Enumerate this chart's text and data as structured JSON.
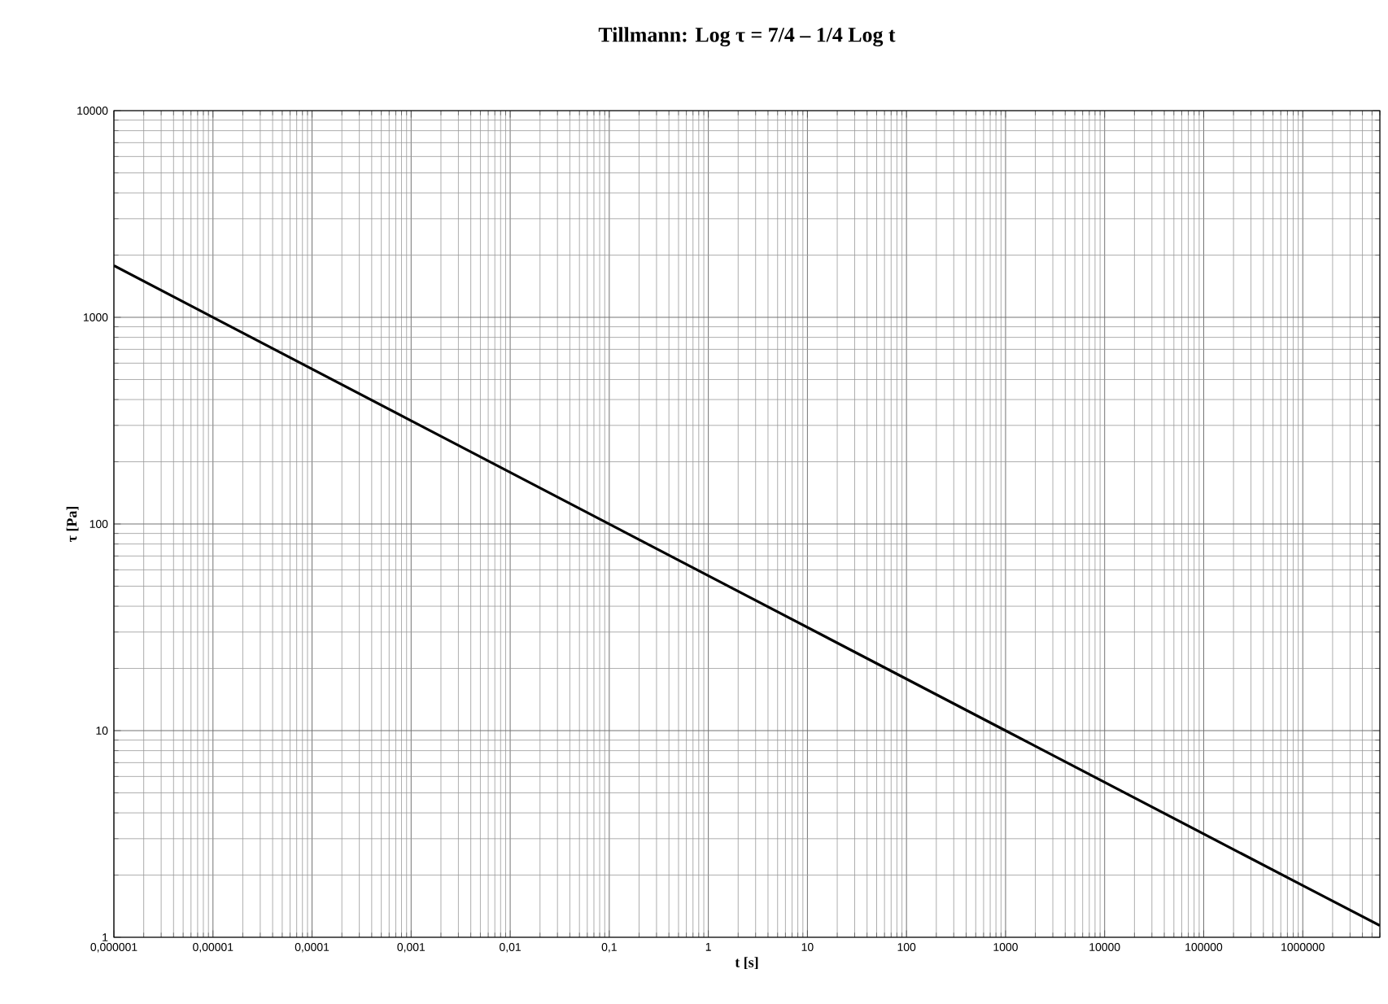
{
  "chart_data": {
    "type": "line",
    "title": "Tillmann:   Log **τ** = 7/4 – 1/4 Log t",
    "xlabel": "t  [s]",
    "ylabel": "**τ** [Pa]",
    "log": "xy",
    "grid": true,
    "xlim": [
      1e-06,
      6000000
    ],
    "ylim": [
      1,
      10000
    ],
    "xticks": [
      {
        "value": 1e-06,
        "label": "0,000001"
      },
      {
        "value": 1e-05,
        "label": "0,00001"
      },
      {
        "value": 0.0001,
        "label": "0,0001"
      },
      {
        "value": 0.001,
        "label": "0,001"
      },
      {
        "value": 0.01,
        "label": "0,01"
      },
      {
        "value": 0.1,
        "label": "0,1"
      },
      1,
      10,
      100,
      1000,
      10000,
      100000,
      1000000
    ],
    "yticks": [
      1,
      10,
      100,
      1000,
      10000
    ],
    "series": [
      {
        "color": "#000000",
        "x": [
          1e-06,
          0.001,
          1,
          1000,
          1000000,
          6000000
        ],
        "values": [
          1778,
          316,
          56.2,
          10,
          1.78,
          1.14
        ]
      }
    ]
  }
}
